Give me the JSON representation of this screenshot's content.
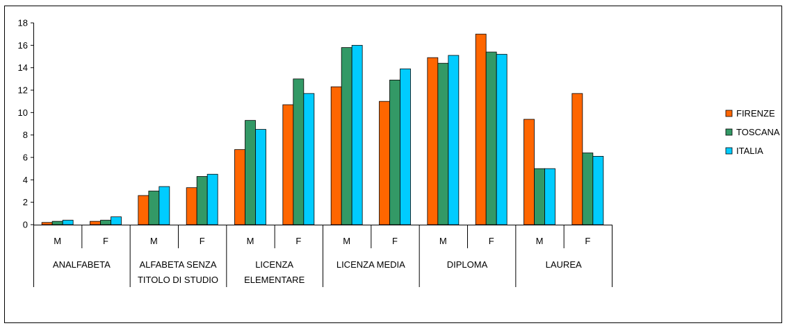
{
  "chart_data": {
    "type": "bar",
    "groups": [
      {
        "label_lines": [
          "ANALFABETA"
        ],
        "subcategories": [
          "M",
          "F"
        ]
      },
      {
        "label_lines": [
          "ALFABETA SENZA",
          "TITOLO DI STUDIO"
        ],
        "subcategories": [
          "M",
          "F"
        ]
      },
      {
        "label_lines": [
          "LICENZA",
          "ELEMENTARE"
        ],
        "subcategories": [
          "M",
          "F"
        ]
      },
      {
        "label_lines": [
          "LICENZA MEDIA"
        ],
        "subcategories": [
          "M",
          "F"
        ]
      },
      {
        "label_lines": [
          "DIPLOMA"
        ],
        "subcategories": [
          "M",
          "F"
        ]
      },
      {
        "label_lines": [
          "LAUREA"
        ],
        "subcategories": [
          "M",
          "F"
        ]
      }
    ],
    "series": [
      {
        "name": "FIRENZE",
        "color": "#ff6600",
        "values": [
          0.2,
          0.3,
          2.6,
          3.3,
          6.7,
          10.7,
          12.3,
          11.0,
          14.9,
          17.0,
          9.4,
          11.7
        ]
      },
      {
        "name": "TOSCANA",
        "color": "#339966",
        "values": [
          0.3,
          0.4,
          3.0,
          4.3,
          9.3,
          13.0,
          15.8,
          12.9,
          14.4,
          15.4,
          5.0,
          6.4
        ]
      },
      {
        "name": "ITALIA",
        "color": "#00ccff",
        "values": [
          0.4,
          0.7,
          3.4,
          4.5,
          8.5,
          11.7,
          16.0,
          13.9,
          15.1,
          15.2,
          5.0,
          6.1
        ]
      }
    ],
    "ylim": [
      0,
      18
    ],
    "yticks": [
      0,
      2,
      4,
      6,
      8,
      10,
      12,
      14,
      16,
      18
    ],
    "grid": false,
    "legend_position": "right"
  }
}
